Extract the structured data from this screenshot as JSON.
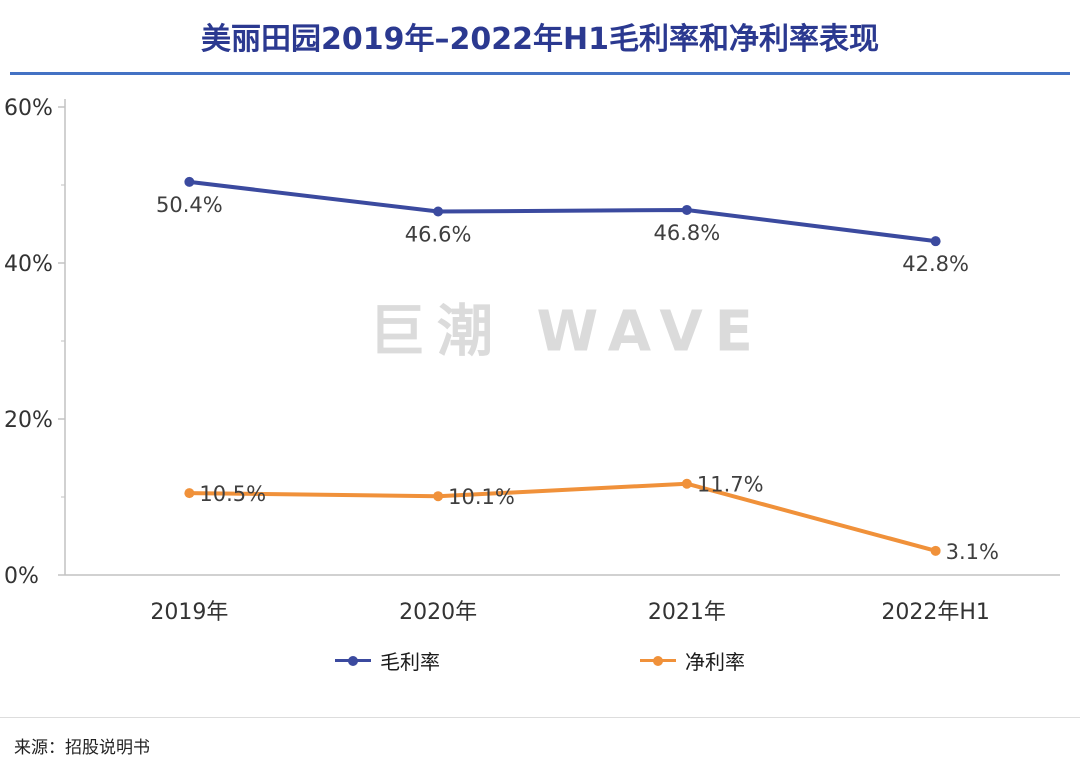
{
  "header": {
    "title": "美丽田园2019年–2022年H1毛利率和净利率表现"
  },
  "watermark": "巨潮 WAVE",
  "source": "来源：招股说明书",
  "colors": {
    "title": "#2B3990",
    "title_rule": "#4472C4",
    "axis": "#C2C2C2",
    "tick_label": "#333333",
    "data_label": "#3F3F3F",
    "watermark": "#DBDBDB"
  },
  "chart_data": {
    "type": "line",
    "title": "美丽田园2019年–2022年H1毛利率和净利率表现",
    "categories": [
      "2019年",
      "2020年",
      "2021年",
      "2022年H1"
    ],
    "series": [
      {
        "name": "毛利率",
        "color": "#3B4A9F",
        "values": [
          50.4,
          46.6,
          46.8,
          42.8
        ],
        "label_placement": "below"
      },
      {
        "name": "净利率",
        "color": "#F0913A",
        "values": [
          10.5,
          10.1,
          11.7,
          3.1
        ],
        "label_placement": "right"
      }
    ],
    "ylim": [
      0,
      60
    ],
    "yticks": [
      0,
      20,
      40,
      60
    ],
    "ytick_labels": [
      "0%",
      "20%",
      "40%",
      "60%"
    ],
    "minor_yticks": [
      10,
      30,
      50
    ],
    "data_label_suffix": "%",
    "grid": false,
    "legend_position": "bottom"
  }
}
